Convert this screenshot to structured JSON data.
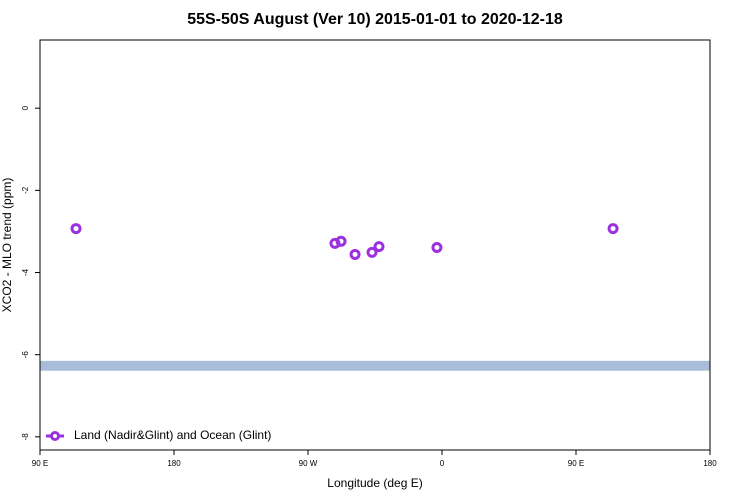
{
  "chart_data": {
    "type": "scatter",
    "title": "55S-50S August (Ver 10)   2015-01-01 to 2020-12-18",
    "x_label": "Longitude (deg E)",
    "y_label": "XCO2 - MLO trend (ppm)",
    "xlim": [
      90,
      540
    ],
    "xticks": [
      {
        "value": 90,
        "label": "90 E"
      },
      180,
      {
        "value": 270,
        "label": "90 W"
      },
      {
        "value": 360,
        "label": "0"
      },
      {
        "value": 450,
        "label": "90 E"
      },
      {
        "value": 540,
        "label": "180"
      }
    ],
    "ylim": [
      -8.32,
      1.66
    ],
    "yticks": [
      0,
      -2,
      -4,
      -6,
      -8
    ],
    "series": [
      {
        "name": "Land (Nadir&Glint) and Ocean (Glint)",
        "color": "#9b30e0",
        "x": [
          114.2,
          288.1,
          292.2,
          301.6,
          313.0,
          317.7,
          356.6,
          474.9
        ],
        "values": [
          -2.93,
          -3.29,
          -3.24,
          -3.56,
          -3.51,
          -3.37,
          -3.39,
          -2.93
        ]
      }
    ],
    "band": {
      "ymin": -6.39,
      "ymax": -6.15,
      "color": "#a9bcd9"
    },
    "legend": "bottom-left"
  }
}
